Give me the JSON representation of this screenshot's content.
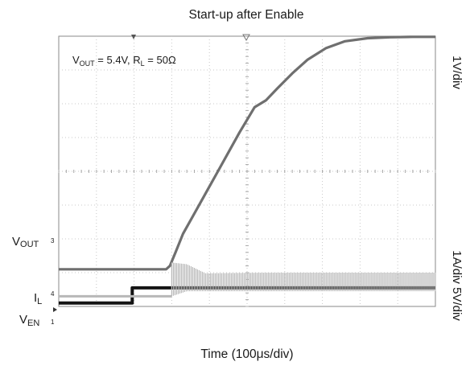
{
  "chart_data": {
    "type": "line",
    "title": "Start-up after Enable",
    "xlabel": "Time (100μs/div)",
    "annotation": {
      "text": "V",
      "sub_out": "OUT",
      "mid": " = 5.4V, R",
      "sub_l": "L",
      "tail": " = 50Ω"
    },
    "right_labels": {
      "top": "1V/div",
      "bottom": "1A/div 5V/div"
    },
    "channel_labels": {
      "vout": {
        "main": "V",
        "sub": "OUT"
      },
      "il": {
        "main": "I",
        "sub": "L"
      },
      "ven": {
        "main": "V",
        "sub": "EN"
      }
    },
    "channel_markers": [
      "3",
      "4",
      "1"
    ],
    "grid": true,
    "divisions": {
      "x": 10,
      "y": 8
    },
    "x_unit": "div",
    "series": [
      {
        "id": "vout",
        "color": "#6f6f6f",
        "x": [
          0,
          1,
          2,
          2.85,
          2.95,
          3.1,
          3.3,
          3.6,
          4.2,
          4.8,
          5.2,
          5.5,
          5.8,
          6.2,
          6.6,
          7.1,
          7.6,
          8.2,
          8.8,
          9.4,
          10
        ],
        "y": [
          1.1,
          1.1,
          1.1,
          1.1,
          1.2,
          1.6,
          2.15,
          2.75,
          3.95,
          5.15,
          5.9,
          6.1,
          6.45,
          6.9,
          7.3,
          7.65,
          7.85,
          7.94,
          7.97,
          7.98,
          7.98
        ]
      },
      {
        "id": "ven",
        "color": "#141414",
        "x": [
          0,
          1.95,
          1.95,
          10
        ],
        "y": [
          0.1,
          0.1,
          0.55,
          0.55
        ]
      },
      {
        "id": "il_baseline",
        "color": "#b8b8b8",
        "x": [
          0,
          3.0
        ],
        "y": [
          0.3,
          0.3
        ]
      },
      {
        "id": "il_ripple",
        "color": "#b8b8b8",
        "x": [
          3.0,
          3.4,
          3.9,
          5.5,
          7.5,
          9.0,
          10
        ],
        "y_low": [
          0.3,
          0.45,
          0.45,
          0.45,
          0.45,
          0.45,
          0.45
        ],
        "y_high": [
          1.3,
          1.25,
          0.98,
          1.0,
          1.0,
          1.0,
          1.0
        ]
      }
    ]
  }
}
